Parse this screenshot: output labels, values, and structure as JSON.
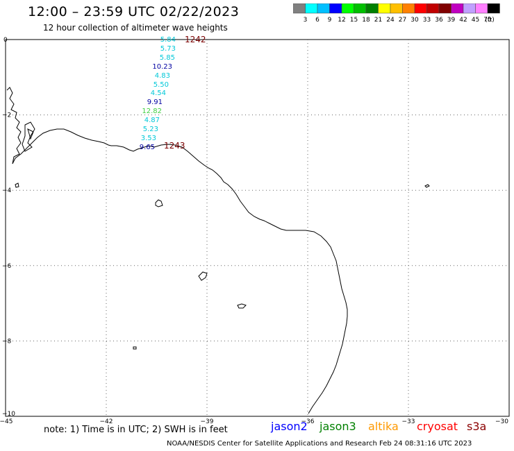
{
  "header": {
    "title": "12:00 – 23:59 UTC 02/22/2023",
    "subtitle": "12 hour collection of altimeter wave heights"
  },
  "colorbar": {
    "colors": [
      "#808080",
      "#00ffff",
      "#00bfff",
      "#0000ff",
      "#00ff00",
      "#00c000",
      "#008000",
      "#ffff00",
      "#ffc000",
      "#ff8000",
      "#ff0000",
      "#c00000",
      "#800000",
      "#c000c0",
      "#c0a0ff",
      "#ff80ff",
      "#000000"
    ],
    "labels": [
      "3",
      "6",
      "9",
      "12",
      "15",
      "18",
      "21",
      "24",
      "27",
      "30",
      "33",
      "36",
      "39",
      "42",
      "45",
      "70",
      "(ft)"
    ]
  },
  "map": {
    "y_ticks": [
      "0",
      "−2",
      "−4",
      "−6",
      "−8",
      "−10"
    ],
    "x_ticks": [
      "−45",
      "−42",
      "−39",
      "−36",
      "−33",
      "−30"
    ],
    "lat_range": [
      -10,
      0
    ],
    "lon_range": [
      -45,
      -30
    ],
    "grid": true
  },
  "swh_observations": [
    {
      "value": "5.84",
      "color": "#00c8d8"
    },
    {
      "value": "5.73",
      "color": "#00c8d8"
    },
    {
      "value": "5.85",
      "color": "#00c8d8"
    },
    {
      "value": "10.23",
      "color": "#0000a0"
    },
    {
      "value": "4.83",
      "color": "#00c8d8"
    },
    {
      "value": "5.50",
      "color": "#00c8d8"
    },
    {
      "value": "4.54",
      "color": "#00c8d8"
    },
    {
      "value": "9.91",
      "color": "#0000a0"
    },
    {
      "value": "12.82",
      "color": "#40d040"
    },
    {
      "value": "4.87",
      "color": "#00c8d8"
    },
    {
      "value": "5.23",
      "color": "#00c8d8"
    },
    {
      "value": "3.53",
      "color": "#00c8d8"
    },
    {
      "value": "9.65",
      "color": "#0000a0"
    }
  ],
  "pass_labels": {
    "start": "1242",
    "end": "1243"
  },
  "footer": {
    "note": "note:  1) Time is in UTC; 2) SWH is in feet",
    "satellites": [
      {
        "name": "jason2",
        "color": "#0000ff"
      },
      {
        "name": "jason3",
        "color": "#008000"
      },
      {
        "name": "altika",
        "color": "#ff9900"
      },
      {
        "name": "cryosat",
        "color": "#ff0000"
      },
      {
        "name": "s3a",
        "color": "#8b0000"
      }
    ],
    "credit": "NOAA/NESDIS Center for Satellite Applications and Research     Feb 24 08:31:16 UTC 2023"
  }
}
